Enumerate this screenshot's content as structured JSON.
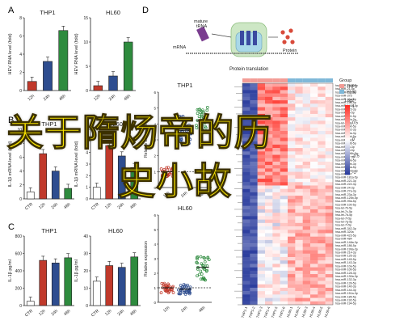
{
  "panels": {
    "A": {
      "letter": "A"
    },
    "B": {
      "letter": "B"
    },
    "C": {
      "letter": "C"
    },
    "D": {
      "letter": "D"
    }
  },
  "overlay": {
    "line1": "关于隋炀帝的历",
    "line2": "史小故"
  },
  "colors": {
    "ctr": "#ffffff",
    "h12": "#c0392b",
    "h24": "#2e4d8f",
    "h48": "#2e8b3e",
    "heat_hi": "#d73027",
    "heat_lo": "#2c3e9e",
    "group_thp1": "#f39c96",
    "group_hl60": "#7fb8d8"
  },
  "chart_data": [
    {
      "type": "bar",
      "panel": "A",
      "title": "THP1",
      "ylabel": "HEV RNA level (fold)",
      "categories": [
        "12h",
        "24h",
        "48h"
      ],
      "values": [
        1,
        3.2,
        6.6
      ],
      "ylim": [
        0,
        8
      ],
      "yticks": [
        0,
        2,
        4,
        6,
        8
      ],
      "colors": [
        "#c0392b",
        "#2e4d8f",
        "#2e8b3e"
      ]
    },
    {
      "type": "bar",
      "panel": "A",
      "title": "HL60",
      "ylabel": "HEV RNA level (fold)",
      "categories": [
        "12h",
        "24h",
        "48h"
      ],
      "values": [
        1,
        3,
        10
      ],
      "ylim": [
        0,
        15
      ],
      "yticks": [
        0,
        5,
        10,
        15
      ],
      "colors": [
        "#c0392b",
        "#2e4d8f",
        "#2e8b3e"
      ]
    },
    {
      "type": "bar",
      "panel": "B",
      "title": "THP1",
      "ylabel": "IL-1β mRNA level (fold)",
      "categories": [
        "CTR",
        "12h",
        "24h",
        "48h"
      ],
      "values": [
        1,
        6.5,
        4,
        1.5
      ],
      "ylim": [
        0,
        10
      ],
      "yticks": [
        0,
        2,
        4,
        6,
        8,
        10
      ],
      "colors": [
        "#ffffff",
        "#c0392b",
        "#2e4d8f",
        "#2e8b3e"
      ]
    },
    {
      "type": "bar",
      "panel": "B",
      "title": "HL60",
      "ylabel": "IL-1β mRNA level (fold)",
      "categories": [
        "CTR",
        "12h",
        "24h",
        "48h"
      ],
      "values": [
        1,
        4.6,
        3.7,
        2.7
      ],
      "ylim": [
        0,
        6
      ],
      "yticks": [
        0,
        1,
        2,
        3,
        4,
        5,
        6
      ],
      "colors": [
        "#ffffff",
        "#c0392b",
        "#2e4d8f",
        "#2e8b3e"
      ]
    },
    {
      "type": "bar",
      "panel": "C",
      "title": "THP1",
      "ylabel": "IL-1β pg/ml",
      "categories": [
        "CTR",
        "12h",
        "24h",
        "48h"
      ],
      "values": [
        50,
        520,
        490,
        550
      ],
      "ylim": [
        0,
        800
      ],
      "yticks": [
        0,
        200,
        400,
        600,
        800
      ],
      "colors": [
        "#ffffff",
        "#c0392b",
        "#2e4d8f",
        "#2e8b3e"
      ]
    },
    {
      "type": "bar",
      "panel": "C",
      "title": "HL60",
      "ylabel": "IL-1β pg/ml",
      "categories": [
        "CTR",
        "12h",
        "24h",
        "48h"
      ],
      "values": [
        14,
        23,
        22,
        28
      ],
      "ylim": [
        0,
        40
      ],
      "yticks": [
        0,
        10,
        20,
        30,
        40
      ],
      "colors": [
        "#ffffff",
        "#c0392b",
        "#2e4d8f",
        "#2e8b3e"
      ]
    },
    {
      "type": "scatter",
      "panel": "D",
      "title": "THP1",
      "ylabel": "Relative expression",
      "categories": [
        "12h",
        "24h",
        "48h"
      ],
      "ylim": [
        0,
        6
      ],
      "yticks": [
        0,
        1,
        2,
        3,
        4,
        5,
        6
      ],
      "centers": [
        1.0,
        3.6,
        4.2
      ]
    },
    {
      "type": "scatter",
      "panel": "D",
      "title": "HL60",
      "ylabel": "Relative expression",
      "categories": [
        "12h",
        "24h",
        "48h"
      ],
      "ylim": [
        0,
        6
      ],
      "yticks": [
        0,
        1,
        2,
        3,
        4,
        5,
        6
      ],
      "centers": [
        1.0,
        0.9,
        2.4
      ]
    },
    {
      "type": "heatmap",
      "panel": "D",
      "legend_title": "Group",
      "legend_items": [
        "THP1",
        "HL60"
      ],
      "scale_title": "Log2",
      "scale_ticks": [
        "1",
        "0.5",
        "0",
        "-0.5",
        "-1"
      ],
      "row_labels": [
        "hsa-miR-450a-5p",
        "hsa-miR-21-5p",
        "hsa-miR-122-5p",
        "hsa-miR-375",
        "hsa-miR-26a-5p",
        "hsa-miR-155-5p",
        "hsa-miR-146a-5p",
        "hsa-miR-223-3p",
        "hsa-miR-16-5p",
        "hsa-miR-191-5p",
        "hsa-miR-92a-3p",
        "hsa-let-7a-5p",
        "hsa-miR-150-5p",
        "hsa-miR-142-3p",
        "hsa-miR-29a-3p",
        "hsa-miR-30d-5p",
        "hsa-miR-451a",
        "hsa-miR-486-5p",
        "hsa-miR-25-3p",
        "hsa-miR-93-5p",
        "hsa-miR-106b-5p",
        "hsa-miR-17-5p",
        "hsa-miR-20a-5p",
        "hsa-miR-19b-3p",
        "hsa-miR-15a-5p",
        "hsa-miR-103a-3p",
        "hsa-miR-107",
        "hsa-miR-181a-5p",
        "hsa-miR-221-3p",
        "hsa-miR-222-3p",
        "hsa-miR-24-3p",
        "hsa-miR-27a-3p",
        "hsa-miR-23a-3p",
        "hsa-miR-125b-5p",
        "hsa-miR-99a-5p",
        "hsa-miR-100-5p",
        "hsa-let-7b-5p",
        "hsa-let-7c-5p",
        "hsa-let-7d-5p",
        "hsa-let-7f-5p",
        "hsa-let-7g-5p",
        "hsa-let-7i-5p",
        "hsa-miR-342-3p",
        "hsa-miR-320a",
        "hsa-miR-423-5p",
        "hsa-miR-484",
        "hsa-miR-148a-3p",
        "hsa-miR-186-5p",
        "hsa-miR-199a-3p",
        "hsa-miR-214-3p",
        "hsa-miR-126-3p",
        "hsa-miR-145-5p",
        "hsa-miR-143-3p",
        "hsa-miR-10a-5p",
        "hsa-miR-10b-5p",
        "hsa-miR-128-3p",
        "hsa-miR-130a-3p",
        "hsa-miR-132-3p",
        "hsa-miR-139-5p",
        "hsa-miR-140-3p",
        "hsa-miR-144-3p",
        "hsa-miR-151a-3p",
        "hsa-miR-185-5p",
        "hsa-miR-192-5p",
        "hsa-miR-194-5p"
      ],
      "col_labels": [
        "THP1-1",
        "THP1-2",
        "THP1-3",
        "THP1-4",
        "THP1-5",
        "THP1-6",
        "HL60-1",
        "HL60-2",
        "HL60-3",
        "HL60-4",
        "HL60-5",
        "HL60-6"
      ]
    }
  ],
  "schematic": {
    "mature_trna": "mature\ntRNA",
    "mrna": "mRNA",
    "protein": "Protein",
    "translation": "Protein translation"
  }
}
